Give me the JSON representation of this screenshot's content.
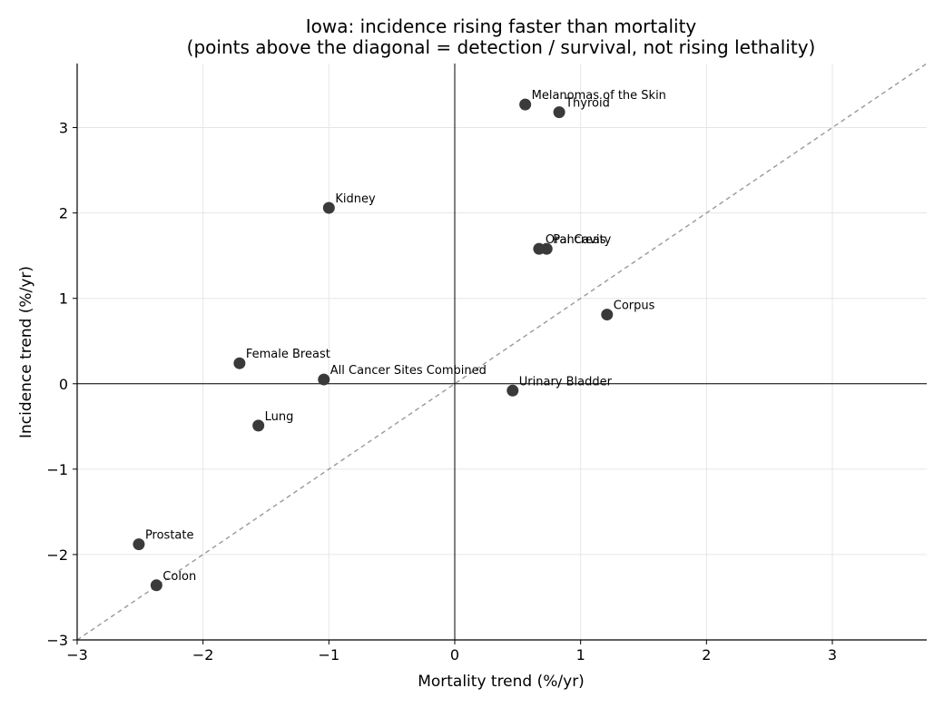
{
  "chart_data": {
    "type": "scatter",
    "title": "Iowa: incidence rising faster than mortality",
    "subtitle": "(points above the diagonal = detection / survival, not rising lethality)",
    "xlabel": "Mortality trend (%/yr)",
    "ylabel": "Incidence trend (%/yr)",
    "xlim": [
      -3.0,
      3.75
    ],
    "ylim": [
      -3.0,
      3.75
    ],
    "xticks": [
      -3,
      -2,
      -1,
      0,
      1,
      2,
      3
    ],
    "yticks": [
      -3,
      -2,
      -1,
      0,
      1,
      2,
      3
    ],
    "grid": true,
    "reference_lines": [
      "x=0",
      "y=0",
      "y=x (dashed)"
    ],
    "point_color": "#3a3a3a",
    "grid_color": "#e6e6e6",
    "diagonal_color": "#999999",
    "points": [
      {
        "label": "Melanomas of the Skin",
        "x": 0.56,
        "y": 3.27
      },
      {
        "label": "Thyroid",
        "x": 0.83,
        "y": 3.18
      },
      {
        "label": "Kidney",
        "x": -1.0,
        "y": 2.06
      },
      {
        "label": "Oral Cavity",
        "x": 0.67,
        "y": 1.58
      },
      {
        "label": "Pancreas",
        "x": 0.73,
        "y": 1.58
      },
      {
        "label": "Corpus",
        "x": 1.21,
        "y": 0.81
      },
      {
        "label": "Female Breast",
        "x": -1.71,
        "y": 0.24
      },
      {
        "label": "All Cancer Sites Combined",
        "x": -1.04,
        "y": 0.05
      },
      {
        "label": "Urinary Bladder",
        "x": 0.46,
        "y": -0.08
      },
      {
        "label": "Lung",
        "x": -1.56,
        "y": -0.49
      },
      {
        "label": "Prostate",
        "x": -2.51,
        "y": -1.88
      },
      {
        "label": "Colon",
        "x": -2.37,
        "y": -2.36
      }
    ]
  }
}
